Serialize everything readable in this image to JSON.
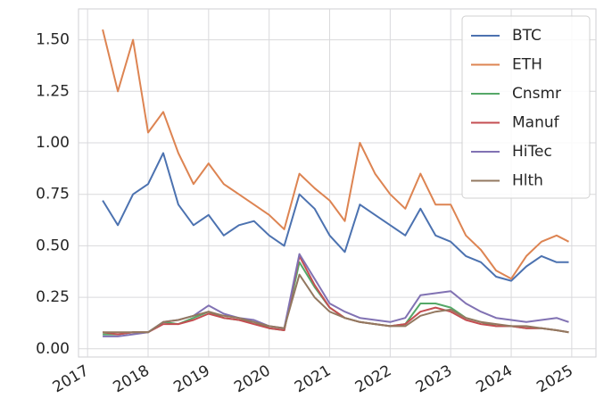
{
  "chart_data": {
    "type": "line",
    "x": [
      2017.25,
      2017.5,
      2017.75,
      2018.0,
      2018.25,
      2018.5,
      2018.75,
      2019.0,
      2019.25,
      2019.5,
      2019.75,
      2020.0,
      2020.25,
      2020.5,
      2020.75,
      2021.0,
      2021.25,
      2021.5,
      2021.75,
      2022.0,
      2022.25,
      2022.5,
      2022.75,
      2023.0,
      2023.25,
      2023.5,
      2023.75,
      2024.0,
      2024.25,
      2024.5,
      2024.75,
      2024.95
    ],
    "series": [
      {
        "name": "BTC",
        "color": "#4c72b0",
        "values": [
          0.72,
          0.6,
          0.75,
          0.8,
          0.95,
          0.7,
          0.6,
          0.65,
          0.55,
          0.6,
          0.62,
          0.55,
          0.5,
          0.75,
          0.68,
          0.55,
          0.47,
          0.7,
          0.65,
          0.6,
          0.55,
          0.68,
          0.55,
          0.52,
          0.45,
          0.42,
          0.35,
          0.33,
          0.4,
          0.45,
          0.42,
          0.42
        ]
      },
      {
        "name": "ETH",
        "color": "#dd8452",
        "values": [
          1.55,
          1.25,
          1.5,
          1.05,
          1.15,
          0.95,
          0.8,
          0.9,
          0.8,
          0.75,
          0.7,
          0.65,
          0.58,
          0.85,
          0.78,
          0.72,
          0.62,
          1.0,
          0.85,
          0.75,
          0.68,
          0.85,
          0.7,
          0.7,
          0.55,
          0.48,
          0.38,
          0.34,
          0.45,
          0.52,
          0.55,
          0.52
        ]
      },
      {
        "name": "Cnsmr",
        "color": "#55a868",
        "values": [
          0.07,
          0.07,
          0.08,
          0.08,
          0.13,
          0.12,
          0.15,
          0.18,
          0.15,
          0.14,
          0.13,
          0.1,
          0.09,
          0.42,
          0.3,
          0.2,
          0.15,
          0.13,
          0.12,
          0.11,
          0.12,
          0.22,
          0.22,
          0.2,
          0.15,
          0.13,
          0.11,
          0.11,
          0.1,
          0.1,
          0.09,
          0.08
        ]
      },
      {
        "name": "Manuf",
        "color": "#c44e52",
        "values": [
          0.08,
          0.07,
          0.08,
          0.08,
          0.12,
          0.12,
          0.14,
          0.17,
          0.15,
          0.14,
          0.12,
          0.1,
          0.09,
          0.45,
          0.31,
          0.2,
          0.15,
          0.13,
          0.12,
          0.11,
          0.12,
          0.18,
          0.2,
          0.18,
          0.14,
          0.12,
          0.11,
          0.11,
          0.1,
          0.1,
          0.09,
          0.08
        ]
      },
      {
        "name": "HiTec",
        "color": "#8172b3",
        "values": [
          0.06,
          0.06,
          0.07,
          0.08,
          0.13,
          0.14,
          0.16,
          0.21,
          0.17,
          0.15,
          0.14,
          0.11,
          0.1,
          0.46,
          0.34,
          0.22,
          0.18,
          0.15,
          0.14,
          0.13,
          0.15,
          0.26,
          0.27,
          0.28,
          0.22,
          0.18,
          0.15,
          0.14,
          0.13,
          0.14,
          0.15,
          0.13
        ]
      },
      {
        "name": "Hlth",
        "color": "#937860",
        "values": [
          0.08,
          0.08,
          0.08,
          0.08,
          0.13,
          0.14,
          0.16,
          0.18,
          0.16,
          0.15,
          0.13,
          0.11,
          0.1,
          0.36,
          0.25,
          0.18,
          0.15,
          0.13,
          0.12,
          0.11,
          0.11,
          0.16,
          0.18,
          0.19,
          0.15,
          0.13,
          0.12,
          0.11,
          0.11,
          0.1,
          0.09,
          0.08
        ]
      }
    ],
    "xlim": [
      2016.85,
      2025.4
    ],
    "xticks": [
      2017,
      2018,
      2019,
      2020,
      2021,
      2022,
      2023,
      2024,
      2025
    ],
    "ylim": [
      -0.04,
      1.65
    ],
    "yticks": [
      {
        "value": 0,
        "label": "0.00"
      },
      {
        "value": 0.25,
        "label": "0.25"
      },
      {
        "value": 0.5,
        "label": "0.50"
      },
      {
        "value": 0.75,
        "label": "0.75"
      },
      {
        "value": 1,
        "label": "1.00"
      },
      {
        "value": 1.25,
        "label": "1.25"
      },
      {
        "value": 1.5,
        "label": "1.50"
      }
    ],
    "grid": true,
    "legend": "upper right"
  }
}
